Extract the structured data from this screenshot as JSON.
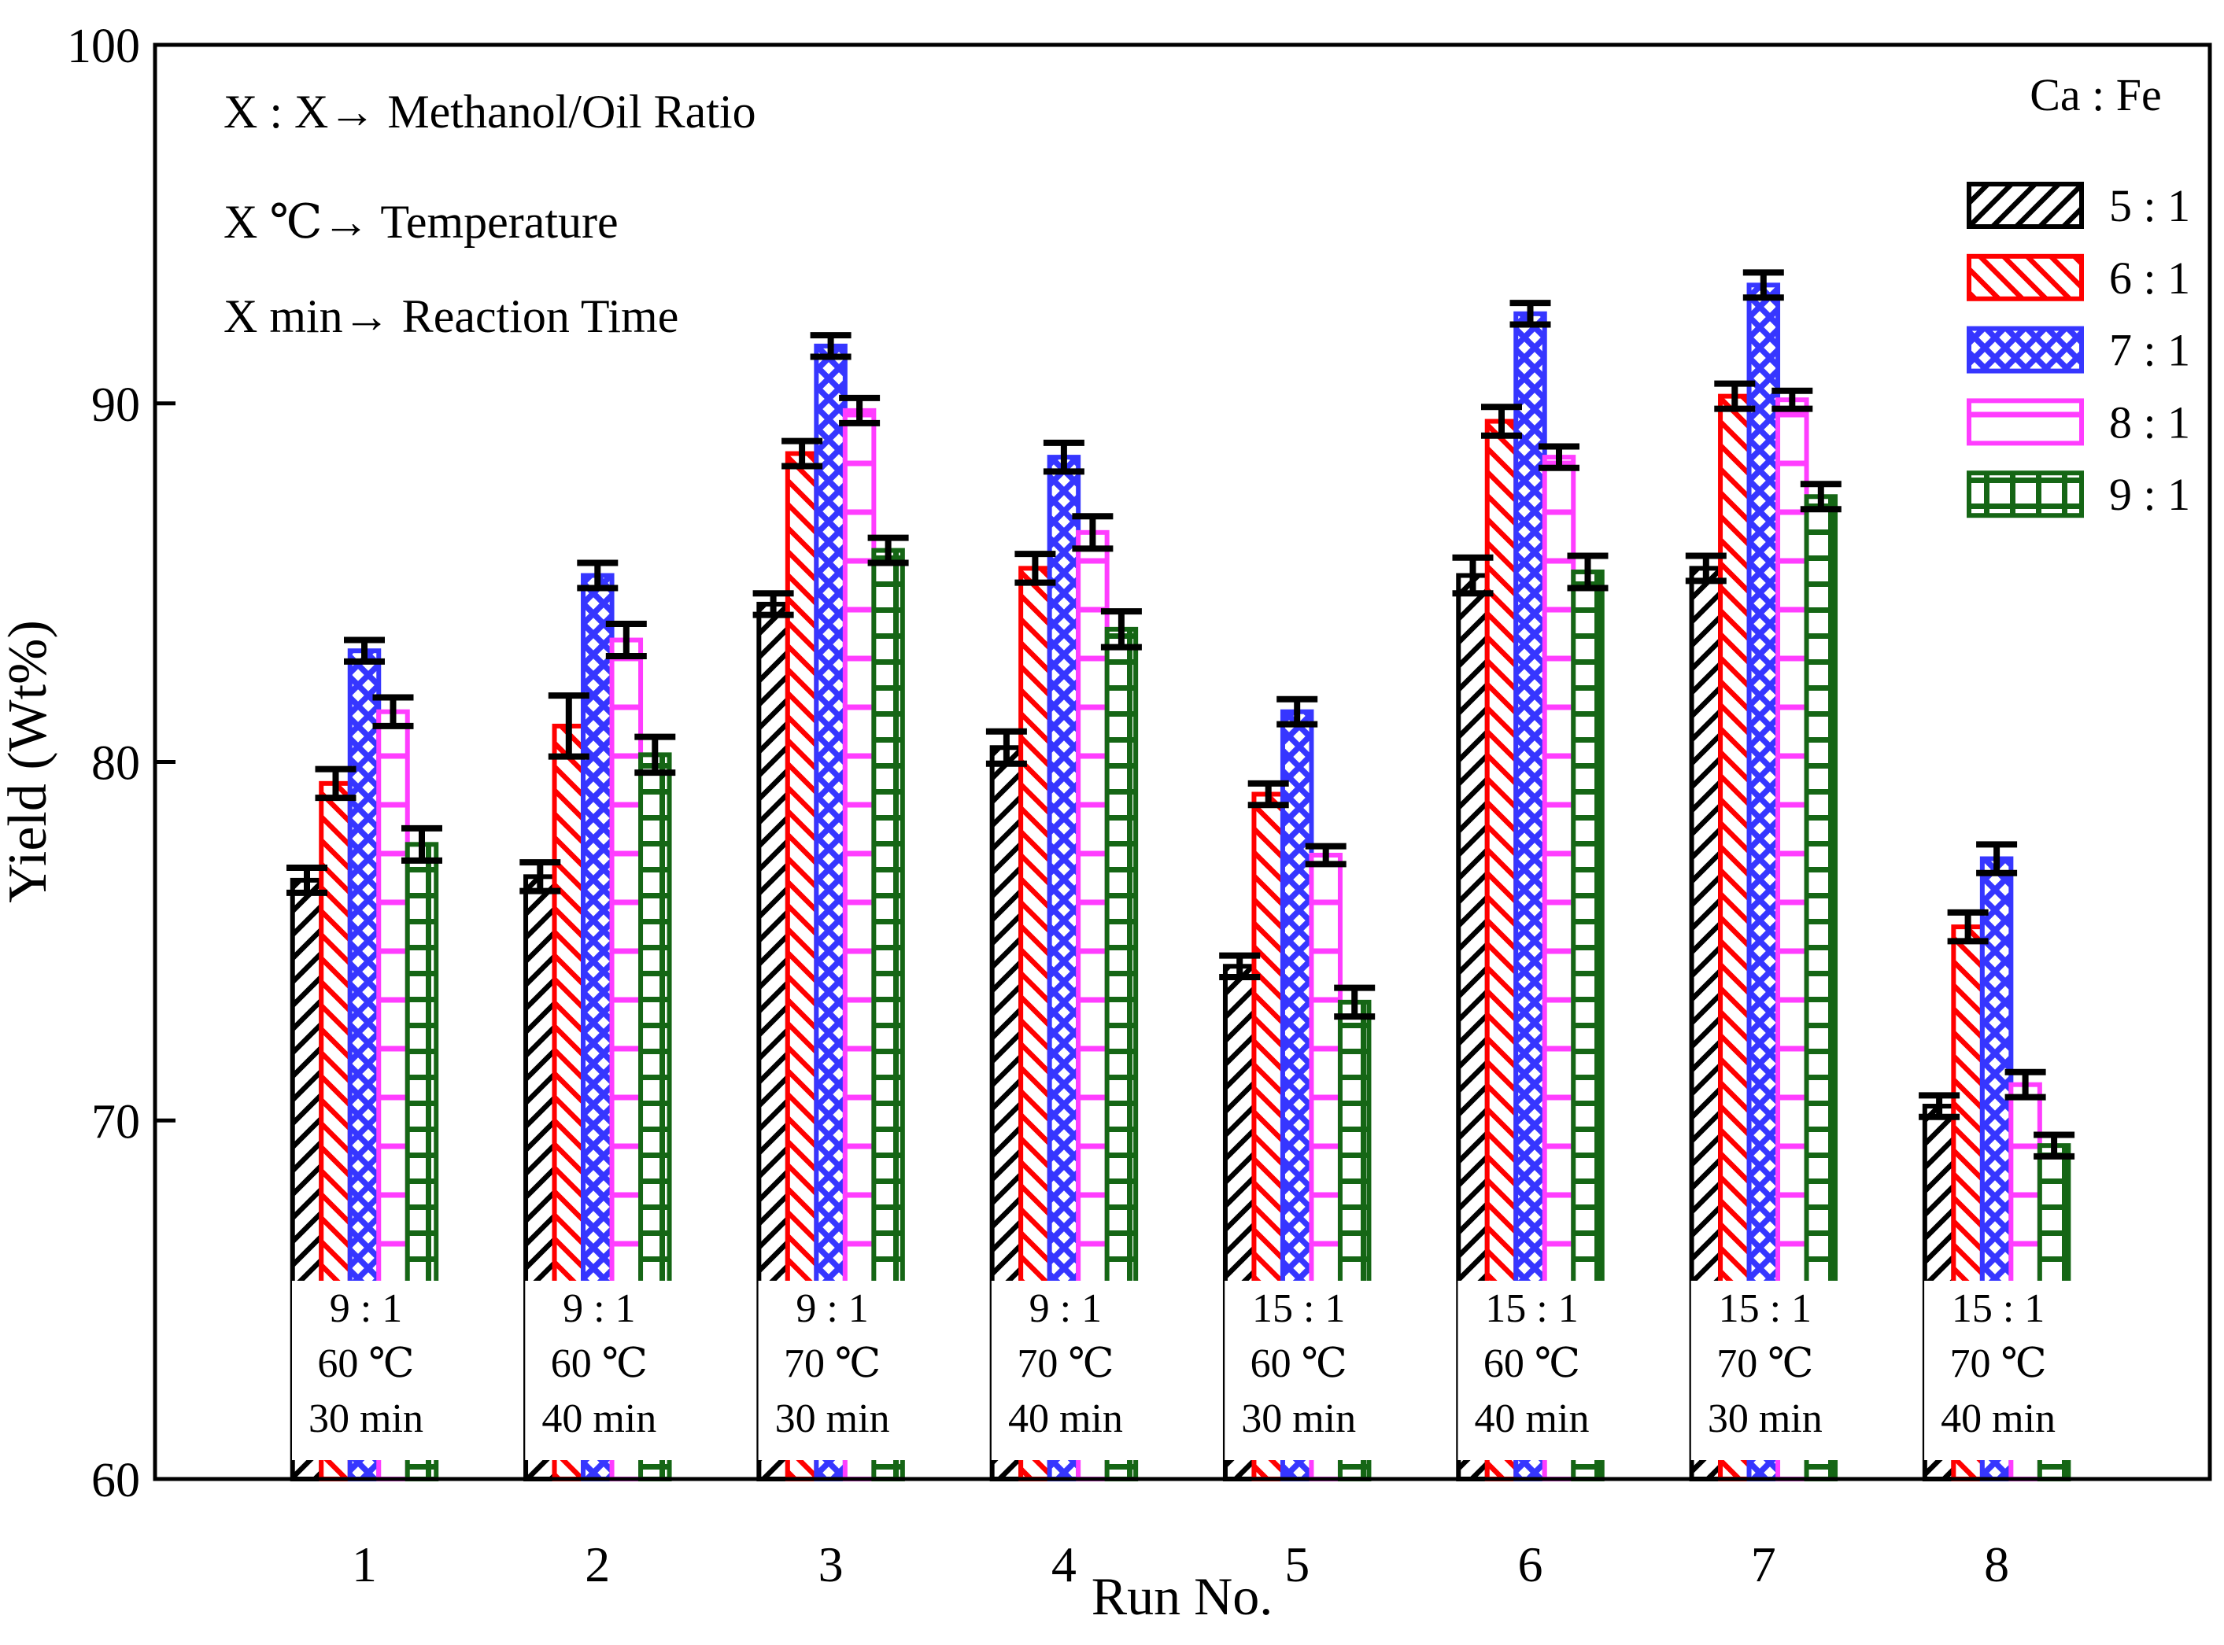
{
  "chart_data": {
    "type": "bar",
    "title": "",
    "xlabel": "Run No.",
    "ylabel": "Yield (Wt%)",
    "ylim": [
      60,
      100
    ],
    "yticks": [
      60,
      70,
      80,
      90,
      100
    ],
    "grid": false,
    "legend_position": "upper-right",
    "legend_title": "Ca : Fe",
    "annotation_lines": [
      "X : X→ Methanol/Oil Ratio",
      "X ℃→ Temperature",
      "X min→ Reaction Time"
    ],
    "categories": [
      "1",
      "2",
      "3",
      "4",
      "5",
      "6",
      "7",
      "8"
    ],
    "groups": [
      {
        "run": "1",
        "conditions": [
          "9 : 1",
          "60 ℃",
          "30 min"
        ]
      },
      {
        "run": "2",
        "conditions": [
          "9 : 1",
          "60 ℃",
          "40 min"
        ]
      },
      {
        "run": "3",
        "conditions": [
          "9 : 1",
          "70 ℃",
          "30 min"
        ]
      },
      {
        "run": "4",
        "conditions": [
          "9 : 1",
          "70 ℃",
          "40 min"
        ]
      },
      {
        "run": "5",
        "conditions": [
          "15 : 1",
          "60 ℃",
          "30 min"
        ]
      },
      {
        "run": "6",
        "conditions": [
          "15 : 1",
          "60 ℃",
          "40 min"
        ]
      },
      {
        "run": "7",
        "conditions": [
          "15 : 1",
          "70 ℃",
          "30 min"
        ]
      },
      {
        "run": "8",
        "conditions": [
          "15 : 1",
          "70 ℃",
          "40 min"
        ]
      }
    ],
    "series": [
      {
        "name": "5 : 1",
        "color": "#000000",
        "pattern": "diag-forward",
        "values": [
          76.7,
          76.8,
          84.4,
          80.4,
          74.3,
          85.2,
          85.4,
          70.4
        ],
        "errors": [
          0.35,
          0.4,
          0.3,
          0.45,
          0.3,
          0.5,
          0.35,
          0.3
        ]
      },
      {
        "name": "6 : 1",
        "color": "#ff0000",
        "pattern": "diag-back",
        "values": [
          79.4,
          81.0,
          88.6,
          85.4,
          79.1,
          89.5,
          90.2,
          75.4
        ],
        "errors": [
          0.4,
          0.85,
          0.35,
          0.4,
          0.3,
          0.4,
          0.35,
          0.4
        ]
      },
      {
        "name": "7 : 1",
        "color": "#3636ff",
        "pattern": "crosshatch",
        "values": [
          83.1,
          85.2,
          91.6,
          88.5,
          81.4,
          92.5,
          93.3,
          77.3
        ],
        "errors": [
          0.3,
          0.35,
          0.3,
          0.4,
          0.35,
          0.3,
          0.35,
          0.4
        ]
      },
      {
        "name": "8 : 1",
        "color": "#ff3dff",
        "pattern": "horizontal",
        "values": [
          81.4,
          83.4,
          89.8,
          86.4,
          77.4,
          88.5,
          90.1,
          71.0
        ],
        "errors": [
          0.4,
          0.45,
          0.35,
          0.45,
          0.25,
          0.3,
          0.25,
          0.35
        ]
      },
      {
        "name": "9 : 1",
        "color": "#156615",
        "pattern": "grid",
        "values": [
          77.7,
          80.2,
          85.9,
          83.7,
          73.3,
          85.3,
          87.4,
          69.3
        ],
        "errors": [
          0.45,
          0.5,
          0.35,
          0.5,
          0.4,
          0.45,
          0.35,
          0.3
        ]
      }
    ]
  }
}
